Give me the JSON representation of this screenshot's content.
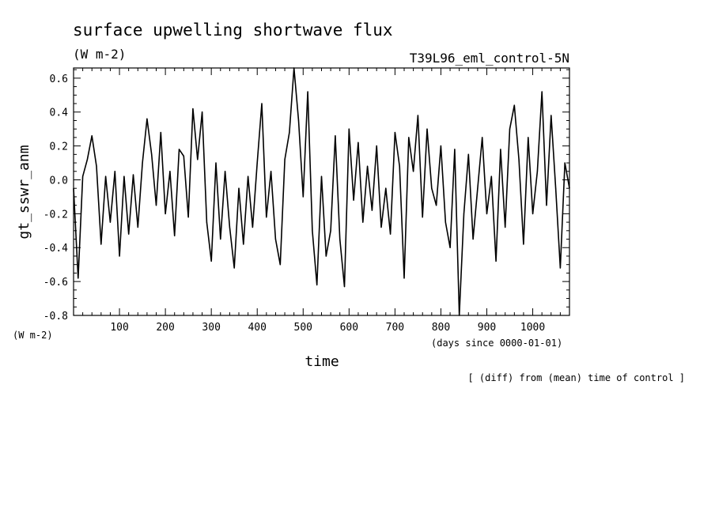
{
  "chart_data": {
    "type": "line",
    "title": "surface upwelling shortwave flux",
    "title_units": "(W m-2)",
    "experiment": "T39L96_eml_control-5N",
    "ylabel": "gt_sswr_anm",
    "y_units": "(W m-2)",
    "xlabel": "time",
    "x_units": "(days since 0000-01-01)",
    "note": "[ (diff) from (mean) time of control ]",
    "xlim": [
      0,
      1080
    ],
    "ylim": [
      -0.8,
      0.66
    ],
    "x_ticks": [
      100,
      200,
      300,
      400,
      500,
      600,
      700,
      800,
      900,
      1000
    ],
    "x_tick_labels": [
      "100",
      "200",
      "300",
      "400",
      "500",
      "600",
      "700",
      "800",
      "900",
      "1000"
    ],
    "y_ticks": [
      -0.8,
      -0.6,
      -0.4,
      -0.2,
      0.0,
      0.2,
      0.4,
      0.6
    ],
    "y_tick_labels": [
      "-0.8",
      "-0.6",
      "-0.4",
      "-0.2",
      "0.0",
      "0.2",
      "0.4",
      "0.6"
    ],
    "grid": false,
    "series": [
      {
        "color": "#000000",
        "x": [
          0,
          10,
          20,
          30,
          40,
          50,
          60,
          70,
          80,
          90,
          100,
          110,
          120,
          130,
          140,
          150,
          160,
          170,
          180,
          190,
          200,
          210,
          220,
          230,
          240,
          250,
          260,
          270,
          280,
          290,
          300,
          310,
          320,
          330,
          340,
          350,
          360,
          370,
          380,
          390,
          400,
          410,
          420,
          430,
          440,
          450,
          460,
          470,
          480,
          490,
          500,
          510,
          520,
          530,
          540,
          550,
          560,
          570,
          580,
          590,
          600,
          610,
          620,
          630,
          640,
          650,
          660,
          670,
          680,
          690,
          700,
          710,
          720,
          730,
          740,
          750,
          760,
          770,
          780,
          790,
          800,
          810,
          820,
          830,
          840,
          850,
          860,
          870,
          880,
          890,
          900,
          910,
          920,
          930,
          940,
          950,
          960,
          970,
          980,
          990,
          1000,
          1010,
          1020,
          1030,
          1040,
          1050,
          1060,
          1070,
          1080
        ],
        "y": [
          -0.05,
          -0.58,
          0.02,
          0.12,
          0.26,
          0.08,
          -0.38,
          0.02,
          -0.25,
          0.05,
          -0.45,
          0.02,
          -0.32,
          0.03,
          -0.28,
          0.1,
          0.36,
          0.15,
          -0.15,
          0.28,
          -0.2,
          0.05,
          -0.33,
          0.18,
          0.14,
          -0.22,
          0.42,
          0.12,
          0.4,
          -0.25,
          -0.48,
          0.1,
          -0.35,
          0.05,
          -0.28,
          -0.52,
          -0.05,
          -0.38,
          0.02,
          -0.28,
          0.1,
          0.45,
          -0.22,
          0.05,
          -0.35,
          -0.5,
          0.12,
          0.28,
          0.66,
          0.35,
          -0.1,
          0.52,
          -0.3,
          -0.62,
          0.02,
          -0.45,
          -0.3,
          0.26,
          -0.35,
          -0.63,
          0.3,
          -0.12,
          0.22,
          -0.25,
          0.08,
          -0.18,
          0.2,
          -0.28,
          -0.05,
          -0.32,
          0.28,
          0.08,
          -0.58,
          0.25,
          0.05,
          0.38,
          -0.22,
          0.3,
          -0.05,
          -0.15,
          0.2,
          -0.25,
          -0.4,
          0.18,
          -0.8,
          -0.2,
          0.15,
          -0.35,
          -0.05,
          0.25,
          -0.2,
          0.02,
          -0.48,
          0.18,
          -0.28,
          0.3,
          0.44,
          0.12,
          -0.38,
          0.25,
          -0.2,
          0.05,
          0.52,
          -0.15,
          0.38,
          -0.05,
          -0.52,
          0.1,
          -0.05
        ]
      }
    ]
  }
}
